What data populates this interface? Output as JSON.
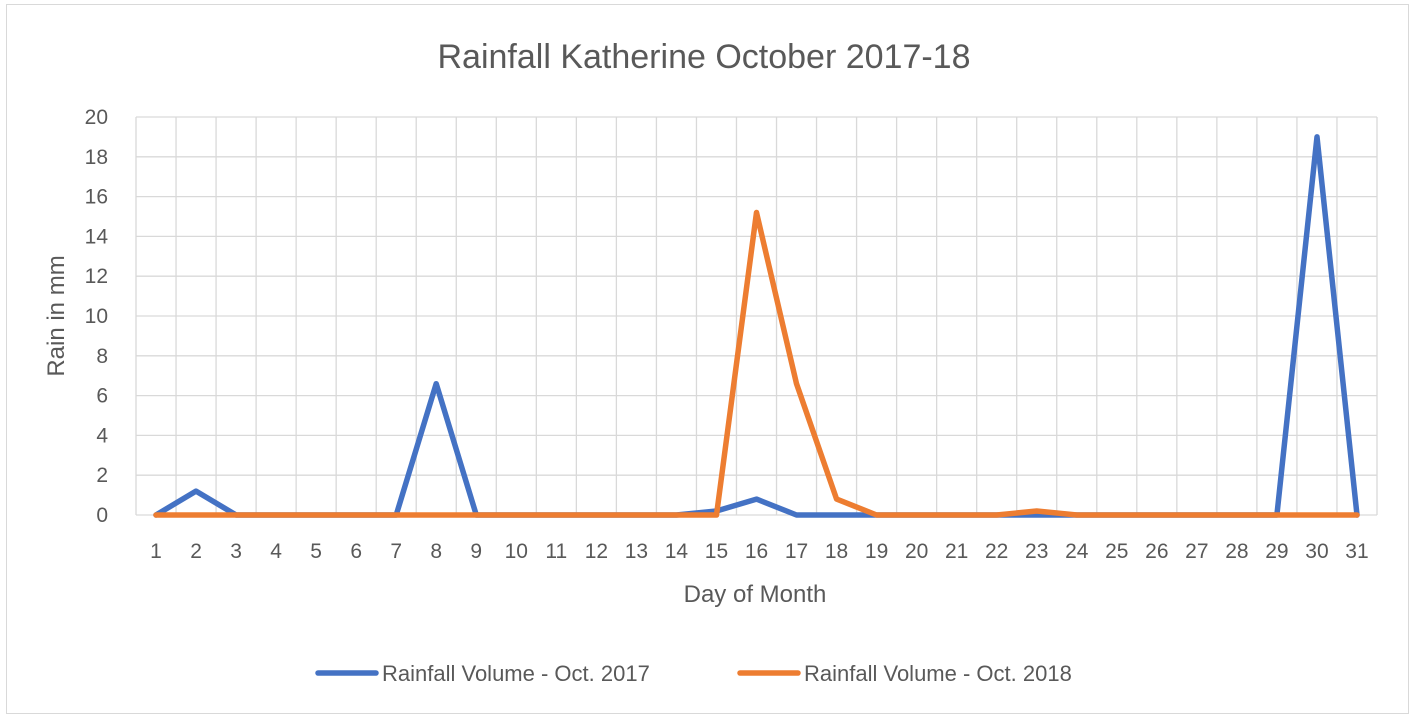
{
  "chart_data": {
    "type": "line",
    "title": "Rainfall Katherine October 2017-18",
    "xlabel": "Day of Month",
    "ylabel": "Rain in mm",
    "x": [
      1,
      2,
      3,
      4,
      5,
      6,
      7,
      8,
      9,
      10,
      11,
      12,
      13,
      14,
      15,
      16,
      17,
      18,
      19,
      20,
      21,
      22,
      23,
      24,
      25,
      26,
      27,
      28,
      29,
      30,
      31
    ],
    "ylim": [
      0,
      20
    ],
    "yticks": [
      0,
      2,
      4,
      6,
      8,
      10,
      12,
      14,
      16,
      18,
      20
    ],
    "grid": true,
    "legend_position": "bottom",
    "series": [
      {
        "name": "Rainfall Volume - Oct. 2017",
        "color": "#4472c4",
        "values": [
          0,
          1.2,
          0,
          0,
          0,
          0,
          0,
          6.6,
          0,
          0,
          0,
          0,
          0,
          0,
          0.2,
          0.8,
          0,
          0,
          0,
          0,
          0,
          0,
          0,
          0,
          0,
          0,
          0,
          0,
          0,
          19.0,
          0
        ]
      },
      {
        "name": "Rainfall Volume - Oct. 2018",
        "color": "#ed7d31",
        "values": [
          0,
          0,
          0,
          0,
          0,
          0,
          0,
          0,
          0,
          0,
          0,
          0,
          0,
          0,
          0,
          15.2,
          6.6,
          0.8,
          0,
          0,
          0,
          0,
          0.2,
          0,
          0,
          0,
          0,
          0,
          0,
          0,
          0
        ]
      }
    ]
  }
}
